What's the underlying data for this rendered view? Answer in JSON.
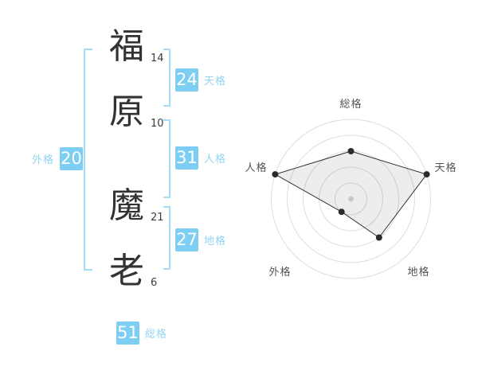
{
  "name_panel": {
    "characters": [
      {
        "char": "福",
        "strokes": "14"
      },
      {
        "char": "原",
        "strokes": "10"
      },
      {
        "char": "魔",
        "strokes": "21"
      },
      {
        "char": "老",
        "strokes": "6"
      }
    ],
    "kaku": {
      "tenkaku": {
        "label": "天格",
        "value": "24"
      },
      "jinkaku": {
        "label": "人格",
        "value": "31"
      },
      "chikaku": {
        "label": "地格",
        "value": "27"
      },
      "gaikaku": {
        "label": "外格",
        "value": "20"
      },
      "soukaku": {
        "label": "総格",
        "value": "51"
      }
    }
  },
  "colors": {
    "accent_blue": "#7ecef4",
    "label_blue": "#92d4f4",
    "bracket_blue": "#a5dcf8",
    "text_dark": "#323232"
  },
  "chart_data": {
    "type": "radar",
    "axes": [
      "総格",
      "天格",
      "地格",
      "外格",
      "人格"
    ],
    "values": [
      60,
      100,
      60,
      20,
      100
    ],
    "max": 100,
    "rings": 5,
    "start_axis": "top",
    "direction": "clockwise",
    "grid": "concentric-circles",
    "legend": "none",
    "ring_color": "#dddddd",
    "polygon_fill": "rgba(0,0,0,0.07)",
    "polygon_stroke": "#333333",
    "point_color": "#2b2b2b",
    "center_dot_color": "#c8c8c8",
    "axis_label_color": "#555555"
  }
}
